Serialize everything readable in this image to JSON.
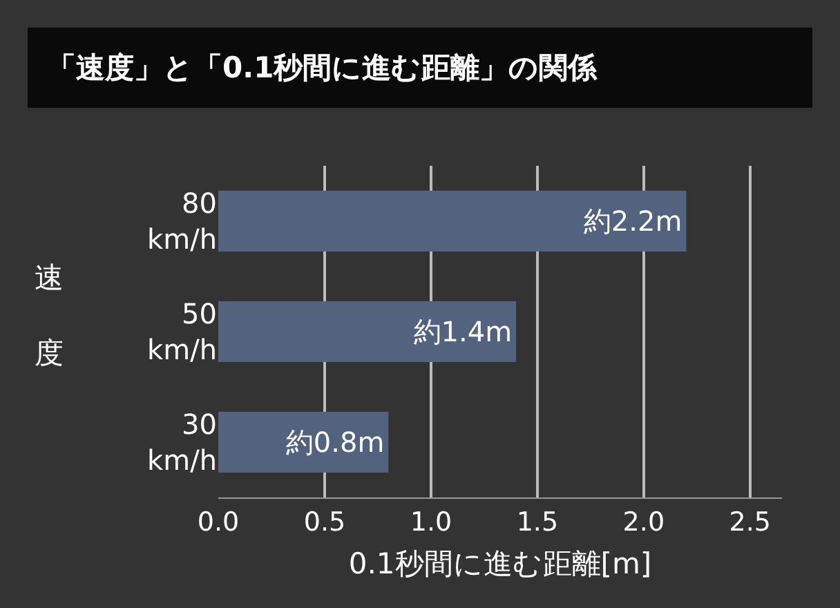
{
  "chart_data": {
    "type": "bar",
    "orientation": "horizontal",
    "title": "「速度」と「0.1秒間に進む距離」の関係",
    "xlabel": "0.1秒間に進む距離[m]",
    "ylabel": "速度",
    "categories": [
      "80 km/h",
      "50 km/h",
      "30 km/h"
    ],
    "values": [
      2.2,
      1.4,
      0.8
    ],
    "value_labels": [
      "約2.2m",
      "約1.4m",
      "約0.8m"
    ],
    "color": "#52627f",
    "xlim": [
      0,
      2.65
    ],
    "xticks": [
      {
        "value": 0,
        "label": "0.0"
      },
      {
        "value": 0.5,
        "label": "0.5"
      },
      {
        "value": 1,
        "label": "1.0"
      },
      {
        "value": 1.5,
        "label": "1.5"
      },
      {
        "value": 2,
        "label": "2.0"
      },
      {
        "value": 2.5,
        "label": "2.5"
      }
    ],
    "grid": "x",
    "legend": false
  }
}
